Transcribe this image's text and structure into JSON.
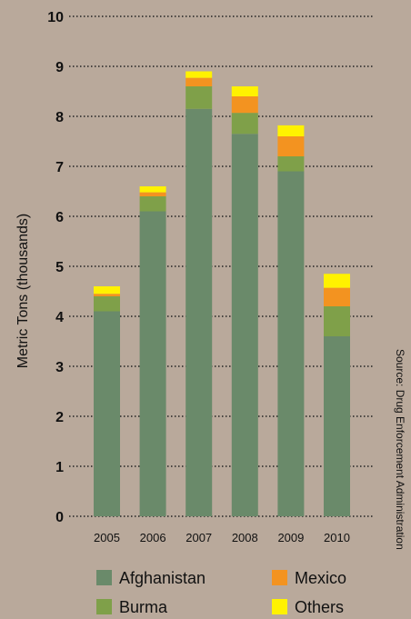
{
  "chart_data": {
    "type": "bar",
    "stacked": true,
    "title": "",
    "xlabel": "",
    "ylabel": "Metric Tons (thousands)",
    "ylim": [
      0,
      10
    ],
    "yticks": [
      "0",
      "1",
      "2",
      "3",
      "4",
      "5",
      "6",
      "7",
      "8",
      "9",
      "10"
    ],
    "categories": [
      "2005",
      "2006",
      "2007",
      "2008",
      "2009",
      "2010"
    ],
    "grid": "dotted horizontal",
    "legend_position": "bottom",
    "series": [
      {
        "name": "Afghanistan",
        "color": "#6a8a6a",
        "values": [
          4.1,
          6.1,
          8.15,
          7.65,
          6.9,
          3.6
        ]
      },
      {
        "name": "Burma",
        "color": "#7fa049",
        "values": [
          0.3,
          0.3,
          0.45,
          0.42,
          0.3,
          0.6
        ]
      },
      {
        "name": "Mexico",
        "color": "#f39320",
        "values": [
          0.05,
          0.08,
          0.17,
          0.33,
          0.4,
          0.37
        ]
      },
      {
        "name": "Others",
        "color": "#fff200",
        "values": [
          0.15,
          0.12,
          0.13,
          0.2,
          0.22,
          0.28
        ]
      }
    ],
    "legend": [
      "Afghanistan",
      "Mexico",
      "Burma",
      "Others"
    ],
    "source": "Source: Drug Enforcement Administration"
  }
}
